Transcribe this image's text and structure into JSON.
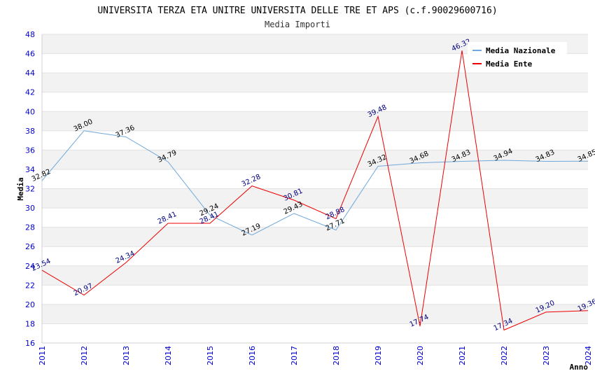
{
  "chart_data": {
    "type": "line",
    "title": "UNIVERSITA TERZA ETA UNITRE UNIVERSITA DELLE TRE ET APS (c.f.90029600716)",
    "subtitle": "Media Importi",
    "xlabel": "Anno",
    "ylabel": "Media",
    "ylim": [
      16,
      48
    ],
    "yticks": [
      16,
      18,
      20,
      22,
      24,
      26,
      28,
      30,
      32,
      34,
      36,
      38,
      40,
      42,
      44,
      46,
      48
    ],
    "x": [
      "2011",
      "2012",
      "2013",
      "2014",
      "2015",
      "2016",
      "2017",
      "2018",
      "2019",
      "2020",
      "2021",
      "2022",
      "2023",
      "2024"
    ],
    "grid": true,
    "legend_position": "top-right",
    "series": [
      {
        "name": "Media Nazionale",
        "color": "#6fa8dc",
        "label_color": "#000000",
        "values": [
          32.82,
          38.0,
          37.36,
          34.79,
          29.24,
          27.19,
          29.43,
          27.71,
          34.32,
          34.68,
          34.83,
          34.94,
          34.83,
          34.85
        ],
        "labels": [
          "32.82",
          "38.00",
          "37.36",
          "34.79",
          "29.24",
          "27.19",
          "29.43",
          "27.71",
          "34.32",
          "34.68",
          "34.83",
          "34.94",
          "34.83",
          "34.85"
        ]
      },
      {
        "name": "Media Ente",
        "color": "#ee0000",
        "label_color": "#000080",
        "values": [
          23.54,
          20.97,
          24.34,
          28.41,
          28.41,
          32.28,
          30.81,
          28.88,
          39.48,
          17.74,
          46.32,
          17.34,
          19.2,
          19.36
        ],
        "labels": [
          "23.54",
          "20.97",
          "24.34",
          "28.41",
          "28.41",
          "32.28",
          "30.81",
          "28.88",
          "39.48",
          "17.74",
          "46.32",
          "17.34",
          "19.20",
          "19.36"
        ]
      }
    ]
  }
}
